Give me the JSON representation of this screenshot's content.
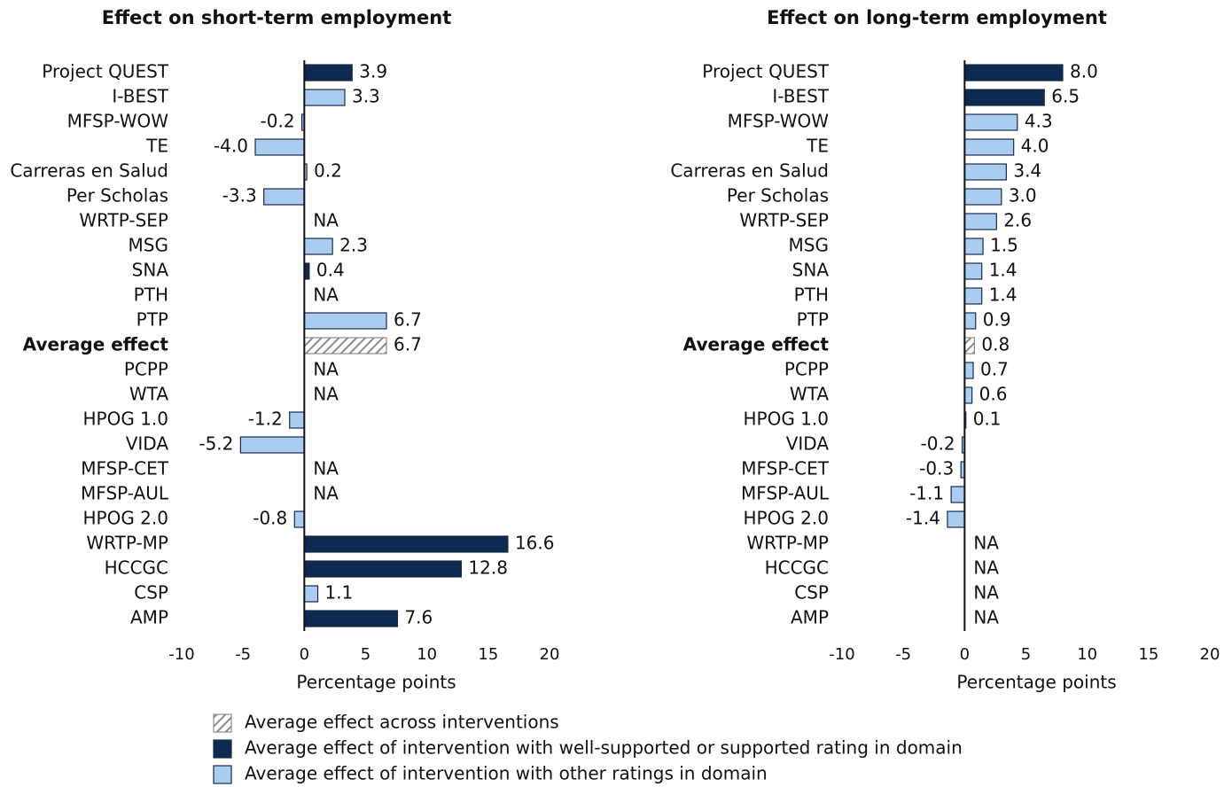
{
  "chart_data": [
    {
      "type": "barh",
      "title": "Effect on short-term employment",
      "xlabel": "Percentage points",
      "categories": [
        "Project QUEST",
        "I-BEST",
        "MFSP-WOW",
        "TE",
        "Carreras en Salud",
        "Per Scholas",
        "WRTP-SEP",
        "MSG",
        "SNA",
        "PTH",
        "PTP",
        "Average effect",
        "PCPP",
        "WTA",
        "HPOG 1.0",
        "VIDA",
        "MFSP-CET",
        "MFSP-AUL",
        "HPOG 2.0",
        "WRTP-MP",
        "HCCGC",
        "CSP",
        "AMP"
      ],
      "series": [
        {
          "name": "Average effect across interventions",
          "color": "#8c8c8c",
          "pattern": "hatch",
          "values": [
            null,
            null,
            null,
            null,
            null,
            null,
            null,
            null,
            null,
            null,
            null,
            6.7,
            null,
            null,
            null,
            null,
            null,
            null,
            null,
            null,
            null,
            null,
            null
          ]
        },
        {
          "name": "Average effect of intervention with well-supported or supported rating in domain",
          "color": "#0e2a52",
          "values": [
            3.9,
            null,
            null,
            null,
            null,
            null,
            null,
            null,
            0.4,
            null,
            null,
            null,
            null,
            null,
            null,
            null,
            null,
            null,
            null,
            16.6,
            12.8,
            null,
            7.6
          ]
        },
        {
          "name": "Average effect of intervention with other ratings in domain",
          "color": "#a9cdf0",
          "values": [
            null,
            3.3,
            -0.2,
            -4.0,
            0.2,
            -3.3,
            null,
            2.3,
            null,
            null,
            6.7,
            null,
            null,
            null,
            -1.2,
            -5.2,
            null,
            null,
            -0.8,
            null,
            null,
            1.1,
            null
          ]
        }
      ],
      "value_labels": [
        "3.9",
        "3.3",
        "-0.2",
        "-4.0",
        "0.2",
        "-3.3",
        "NA",
        "2.3",
        "0.4",
        "NA",
        "6.7",
        "6.7",
        "NA",
        "NA",
        "-1.2",
        "-5.2",
        "NA",
        "NA",
        "-0.8",
        "16.6",
        "12.8",
        "1.1",
        "7.6"
      ],
      "xlim": [
        -10,
        20
      ],
      "xticks": [
        -10,
        -5,
        0,
        5,
        10,
        15,
        20
      ]
    },
    {
      "type": "barh",
      "title": "Effect on long-term employment",
      "xlabel": "Percentage points",
      "categories": [
        "Project QUEST",
        "I-BEST",
        "MFSP-WOW",
        "TE",
        "Carreras en Salud",
        "Per Scholas",
        "WRTP-SEP",
        "MSG",
        "SNA",
        "PTH",
        "PTP",
        "Average effect",
        "PCPP",
        "WTA",
        "HPOG 1.0",
        "VIDA",
        "MFSP-CET",
        "MFSP-AUL",
        "HPOG 2.0",
        "WRTP-MP",
        "HCCGC",
        "CSP",
        "AMP"
      ],
      "series": [
        {
          "name": "Average effect across interventions",
          "color": "#8c8c8c",
          "pattern": "hatch",
          "values": [
            null,
            null,
            null,
            null,
            null,
            null,
            null,
            null,
            null,
            null,
            null,
            0.8,
            null,
            null,
            null,
            null,
            null,
            null,
            null,
            null,
            null,
            null,
            null
          ]
        },
        {
          "name": "Average effect of intervention with well-supported or supported rating in domain",
          "color": "#0e2a52",
          "values": [
            8.0,
            6.5,
            null,
            null,
            null,
            null,
            null,
            null,
            null,
            null,
            null,
            null,
            null,
            null,
            null,
            null,
            null,
            null,
            null,
            null,
            null,
            null,
            null
          ]
        },
        {
          "name": "Average effect of intervention with other ratings in domain",
          "color": "#a9cdf0",
          "values": [
            null,
            null,
            4.3,
            4.0,
            3.4,
            3.0,
            2.6,
            1.5,
            1.4,
            1.4,
            0.9,
            null,
            0.7,
            0.6,
            0.1,
            -0.2,
            -0.3,
            -1.1,
            -1.4,
            null,
            null,
            null,
            null
          ]
        }
      ],
      "value_labels": [
        "8.0",
        "6.5",
        "4.3",
        "4.0",
        "3.4",
        "3.0",
        "2.6",
        "1.5",
        "1.4",
        "1.4",
        "0.9",
        "0.8",
        "0.7",
        "0.6",
        "0.1",
        "-0.2",
        "-0.3",
        "-1.1",
        "-1.4",
        "NA",
        "NA",
        "NA",
        "NA"
      ],
      "xlim": [
        -10,
        20
      ],
      "xticks": [
        -10,
        -5,
        0,
        5,
        10,
        15,
        20
      ]
    }
  ]
}
